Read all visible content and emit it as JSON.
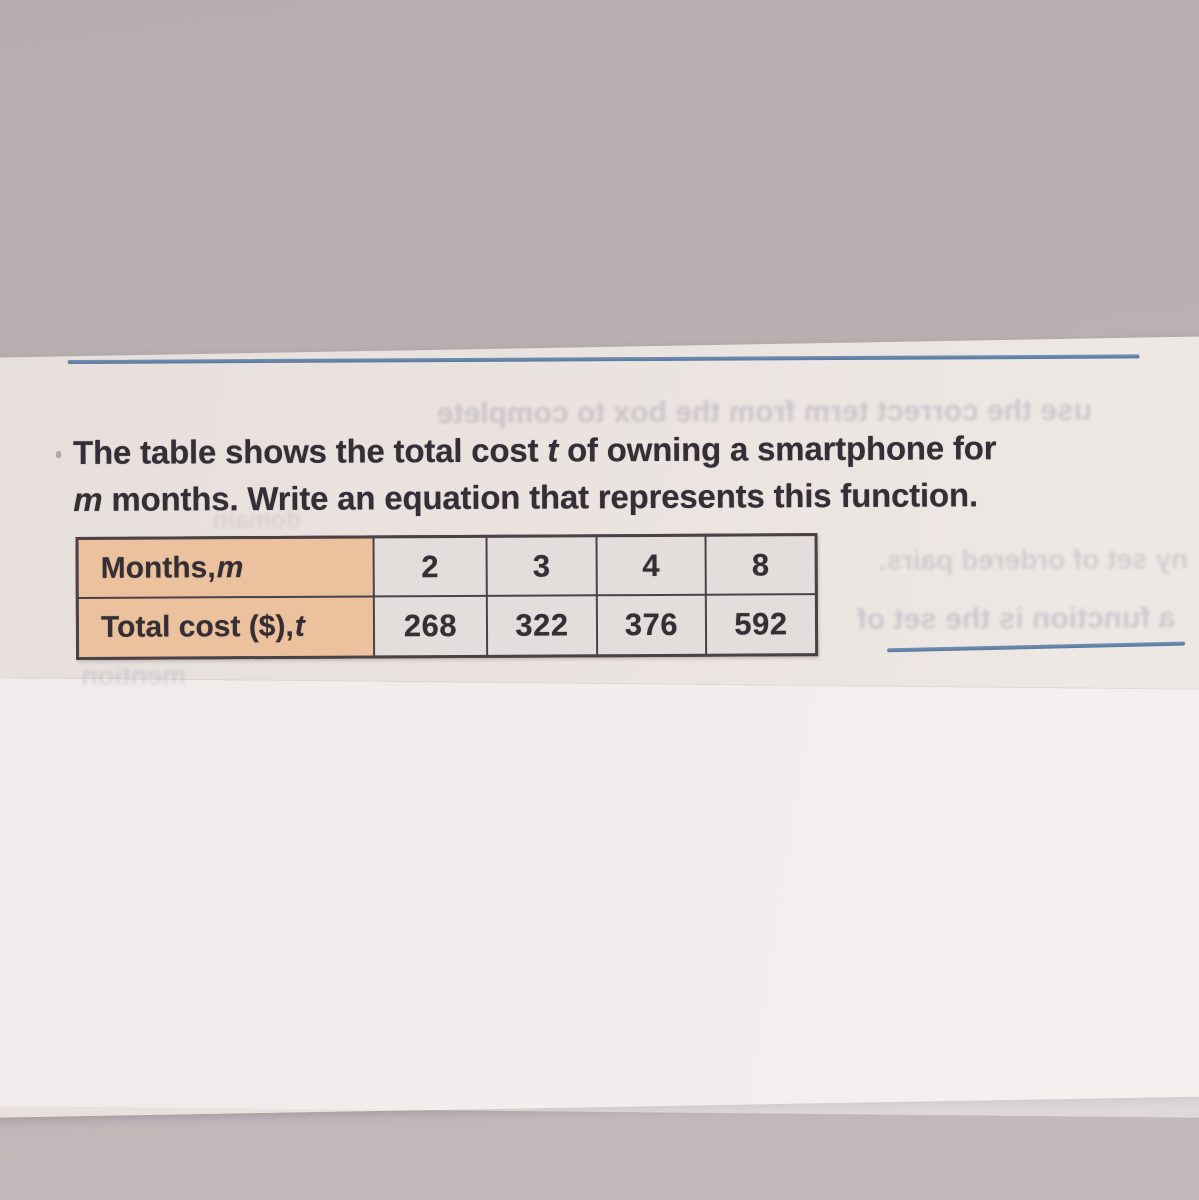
{
  "problem": {
    "seg1": "The table shows the total cost ",
    "var_t": "t",
    "seg2": " of owning a smartphone for",
    "var_m": "m",
    "seg3": " months. Write an equation that represents this function."
  },
  "table": {
    "rows": [
      {
        "label_prefix": "Months, ",
        "label_var": "m",
        "values": [
          "2",
          "3",
          "4",
          "8"
        ]
      },
      {
        "label_prefix": "Total cost ($), ",
        "label_var": "t",
        "values": [
          "268",
          "322",
          "376",
          "592"
        ]
      }
    ]
  },
  "ghosts": [
    {
      "text": "use the correct term from the box to complete"
    },
    {
      "text": "domain"
    },
    {
      "text": "ny set of ordered pairs."
    },
    {
      "text": "a function is the set of"
    },
    {
      "text": "mention"
    }
  ],
  "colors": {
    "background_mauve": "#bab0b3",
    "paper": "#eae3df",
    "rule_blue": "#54779f",
    "table_header_bg": "#ebc29d",
    "table_cell_bg": "#e3dedb",
    "table_border": "#4a4246",
    "ink": "#342e37"
  }
}
